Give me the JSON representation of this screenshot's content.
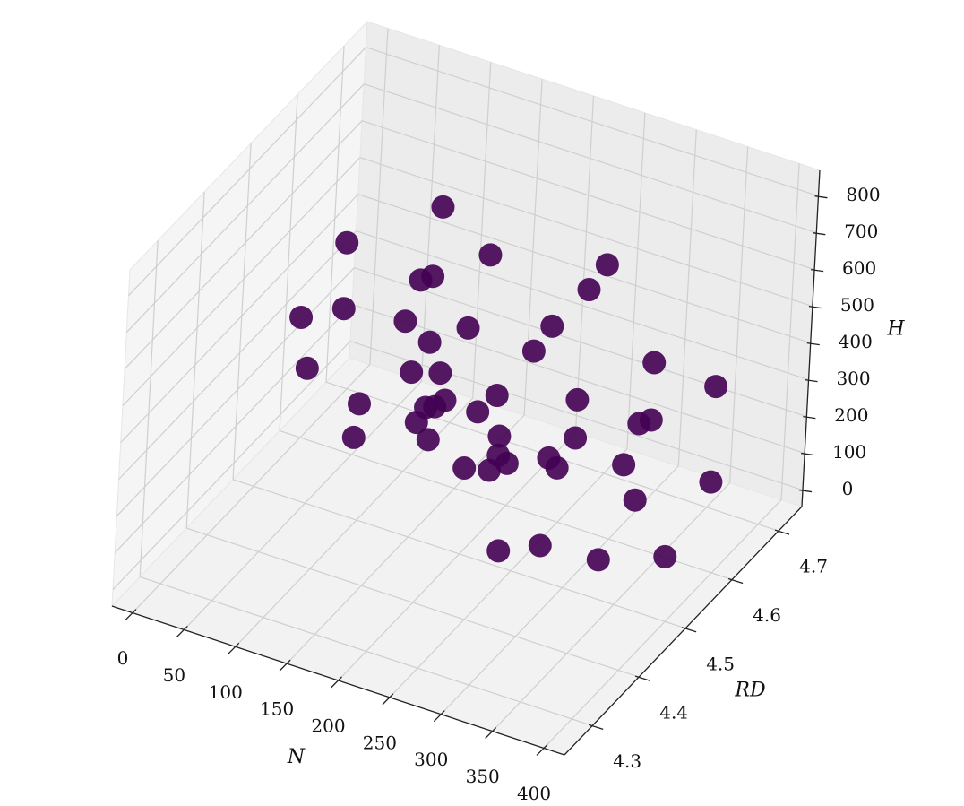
{
  "chart_data": {
    "type": "scatter3d",
    "x_label": "N",
    "y_label": "RD",
    "z_label": "H",
    "xlim": [
      -20,
      420
    ],
    "ylim": [
      4.24,
      4.75
    ],
    "zlim": [
      -45,
      870
    ],
    "xticks": [
      0,
      50,
      100,
      150,
      200,
      250,
      300,
      350,
      400
    ],
    "yticks": [
      4.3,
      4.4,
      4.5,
      4.6,
      4.7
    ],
    "zticks": [
      0,
      100,
      200,
      300,
      400,
      500,
      600,
      700,
      800
    ],
    "grid": true,
    "color": "#440154",
    "x": [
      228,
      194,
      161,
      127,
      94,
      60,
      212,
      197,
      181,
      166,
      150,
      244,
      261,
      277,
      294,
      310,
      266,
      305,
      343,
      382,
      420,
      266,
      305,
      343,
      382,
      420,
      258,
      289,
      319,
      350,
      380,
      234,
      241,
      247,
      254,
      260,
      186,
      145,
      103,
      62,
      20,
      198,
      169,
      139,
      110,
      80
    ],
    "y": [
      4.5,
      4.42,
      4.5,
      4.58,
      4.46,
      4.54,
      4.42,
      4.5,
      4.58,
      4.46,
      4.54,
      4.42,
      4.5,
      4.58,
      4.46,
      4.54,
      4.42,
      4.5,
      4.58,
      4.46,
      4.54,
      4.42,
      4.5,
      4.58,
      4.46,
      4.54,
      4.42,
      4.5,
      4.58,
      4.46,
      4.54,
      4.42,
      4.5,
      4.58,
      4.46,
      4.54,
      4.42,
      4.5,
      4.58,
      4.46,
      4.54,
      4.42,
      4.5,
      4.58,
      4.46,
      4.54
    ],
    "z": [
      412,
      454,
      495,
      537,
      578,
      620,
      490,
      567,
      645,
      722,
      800,
      488,
      563,
      639,
      714,
      790,
      442,
      471,
      501,
      530,
      560,
      390,
      367,
      345,
      322,
      300,
      342,
      271,
      201,
      130,
      60,
      326,
      239,
      153,
      66,
      -20,
      406,
      399,
      393,
      386,
      380,
      370,
      327,
      285,
      242,
      200
    ]
  }
}
